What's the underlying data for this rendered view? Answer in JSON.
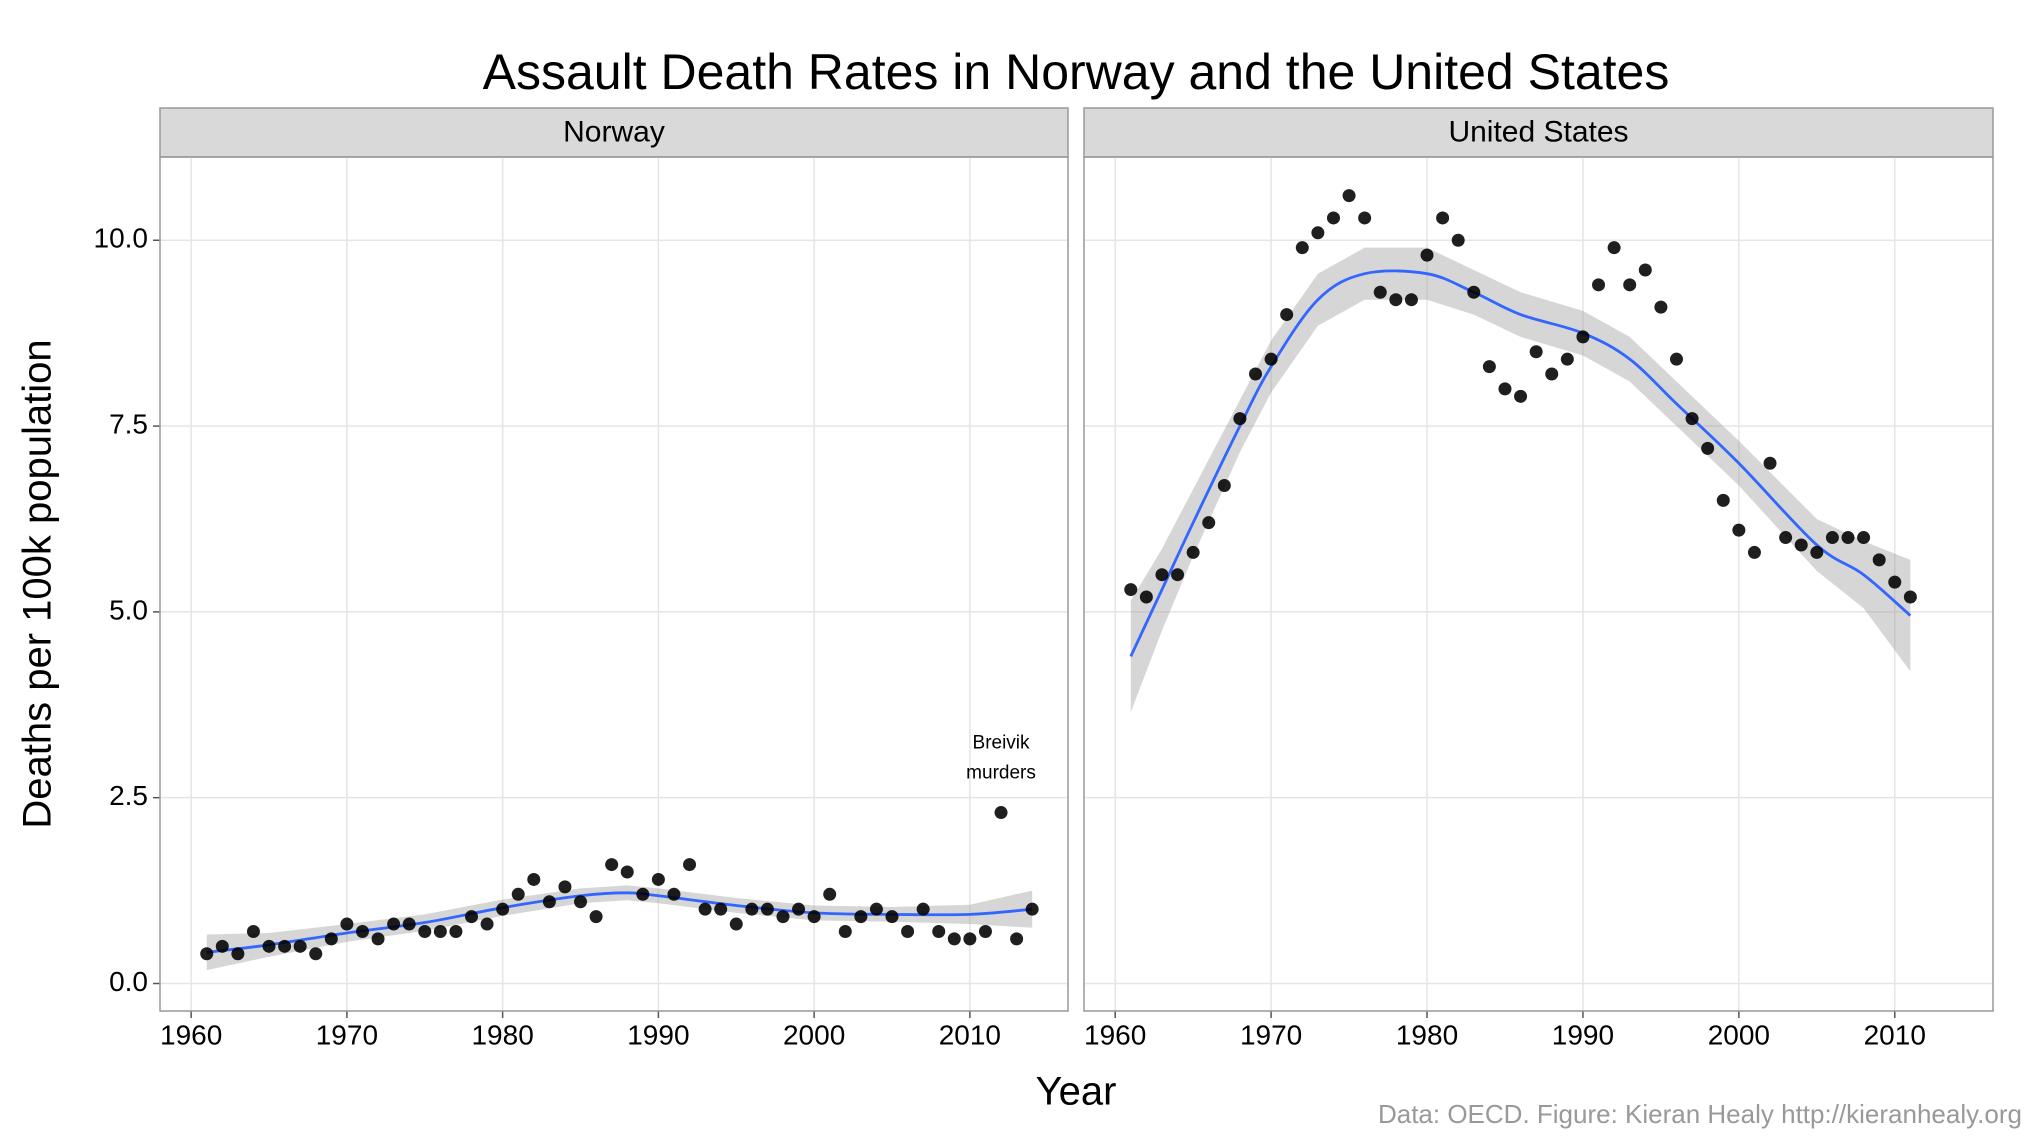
{
  "figure": {
    "title": "Assault Death Rates in Norway and the United States",
    "xlabel": "Year",
    "ylabel": "Deaths per 100k population",
    "caption": "Data: OECD. Figure: Kieran Healy http://kieranhealy.org"
  },
  "chart_data": [
    {
      "type": "scatter",
      "title": "Norway",
      "color": "#000000",
      "x": [
        1961,
        1962,
        1963,
        1964,
        1965,
        1966,
        1967,
        1968,
        1969,
        1970,
        1971,
        1972,
        1973,
        1974,
        1975,
        1976,
        1977,
        1978,
        1979,
        1980,
        1981,
        1982,
        1983,
        1984,
        1985,
        1986,
        1987,
        1988,
        1989,
        1990,
        1991,
        1992,
        1993,
        1994,
        1995,
        1996,
        1997,
        1998,
        1999,
        2000,
        2001,
        2002,
        2003,
        2004,
        2005,
        2006,
        2007,
        2008,
        2009,
        2010,
        2011,
        2012,
        2013,
        2014
      ],
      "values": [
        0.4,
        0.5,
        0.4,
        0.7,
        0.5,
        0.5,
        0.5,
        0.4,
        0.6,
        0.8,
        0.7,
        0.6,
        0.8,
        0.8,
        0.7,
        0.7,
        0.7,
        0.9,
        0.8,
        1.0,
        1.2,
        1.4,
        1.1,
        1.3,
        1.1,
        0.9,
        1.6,
        1.5,
        1.2,
        1.4,
        1.2,
        1.6,
        1.0,
        1.0,
        0.8,
        1.0,
        1.0,
        0.9,
        1.0,
        0.9,
        1.2,
        0.7,
        0.9,
        1.0,
        0.9,
        0.7,
        1.0,
        0.7,
        0.6,
        0.6,
        0.7,
        2.3,
        0.6,
        1.0
      ],
      "smooth": {
        "color": "#3366ff",
        "x": [
          1961,
          1965,
          1970,
          1975,
          1980,
          1985,
          1988,
          1990,
          1995,
          2000,
          2005,
          2010,
          2014
        ],
        "values": [
          0.42,
          0.52,
          0.68,
          0.82,
          1.02,
          1.18,
          1.22,
          1.18,
          1.05,
          0.95,
          0.93,
          0.93,
          1.0
        ],
        "lower": [
          0.18,
          0.36,
          0.56,
          0.71,
          0.91,
          1.08,
          1.12,
          1.08,
          0.95,
          0.85,
          0.83,
          0.8,
          0.75
        ],
        "upper": [
          0.66,
          0.68,
          0.8,
          0.93,
          1.13,
          1.28,
          1.32,
          1.28,
          1.15,
          1.05,
          1.03,
          1.06,
          1.25
        ]
      },
      "annotation": {
        "text": [
          "Breivik",
          "murders"
        ],
        "x": 2012,
        "y": 3.0
      },
      "xlim": [
        1958,
        2016.3
      ],
      "xticks": [
        1960,
        1970,
        1980,
        1990,
        2000,
        2010
      ],
      "ylim": [
        -0.37,
        11.12
      ],
      "yticks": [
        {
          "value": 0,
          "label": "0.0"
        },
        2.5,
        {
          "value": 5,
          "label": "5.0"
        },
        7.5,
        {
          "value": 10,
          "label": "10.0"
        }
      ],
      "grid": true
    },
    {
      "type": "scatter",
      "title": "United States",
      "color": "#000000",
      "x": [
        1961,
        1962,
        1963,
        1964,
        1965,
        1966,
        1967,
        1968,
        1969,
        1970,
        1971,
        1972,
        1973,
        1974,
        1975,
        1976,
        1977,
        1978,
        1979,
        1980,
        1981,
        1982,
        1983,
        1984,
        1985,
        1986,
        1987,
        1988,
        1989,
        1990,
        1991,
        1992,
        1993,
        1994,
        1995,
        1996,
        1997,
        1998,
        1999,
        2000,
        2001,
        2002,
        2003,
        2004,
        2005,
        2006,
        2007,
        2008,
        2009,
        2010,
        2011
      ],
      "values": [
        5.3,
        5.2,
        5.5,
        5.5,
        5.8,
        6.2,
        6.7,
        7.6,
        8.2,
        8.4,
        9.0,
        9.9,
        10.1,
        10.3,
        10.6,
        10.3,
        9.3,
        9.2,
        9.2,
        9.8,
        10.3,
        10.0,
        9.3,
        8.3,
        8.0,
        7.9,
        8.5,
        8.2,
        8.4,
        8.7,
        9.4,
        9.9,
        9.4,
        9.6,
        9.1,
        8.4,
        7.6,
        7.2,
        6.5,
        6.1,
        5.8,
        7.0,
        6.0,
        5.9,
        5.8,
        6.0,
        6.0,
        6.0,
        5.7,
        5.4,
        5.2
      ],
      "smooth": {
        "color": "#3366ff",
        "x": [
          1961,
          1963,
          1965,
          1968,
          1970,
          1973,
          1976,
          1980,
          1983,
          1986,
          1990,
          1993,
          1996,
          2000,
          2005,
          2008,
          2011
        ],
        "values": [
          4.4,
          5.3,
          6.2,
          7.5,
          8.3,
          9.2,
          9.55,
          9.55,
          9.3,
          9.0,
          8.75,
          8.4,
          7.8,
          7.0,
          5.9,
          5.5,
          4.95
        ],
        "lower": [
          3.65,
          4.75,
          5.75,
          7.15,
          7.95,
          8.85,
          9.2,
          9.2,
          9.0,
          8.7,
          8.45,
          8.1,
          7.5,
          6.7,
          5.55,
          5.05,
          4.2
        ],
        "upper": [
          5.15,
          5.85,
          6.65,
          7.85,
          8.65,
          9.55,
          9.9,
          9.9,
          9.6,
          9.3,
          9.05,
          8.7,
          8.1,
          7.3,
          6.25,
          5.95,
          5.7
        ]
      },
      "xlim": [
        1958,
        2016.3
      ],
      "xticks": [
        1960,
        1970,
        1980,
        1990,
        2000,
        2010
      ],
      "ylim": [
        -0.37,
        11.12
      ],
      "yticks": [
        {
          "value": 0,
          "label": "0.0"
        },
        2.5,
        {
          "value": 5,
          "label": "5.0"
        },
        7.5,
        {
          "value": 10,
          "label": "10.0"
        }
      ],
      "grid": true
    }
  ]
}
